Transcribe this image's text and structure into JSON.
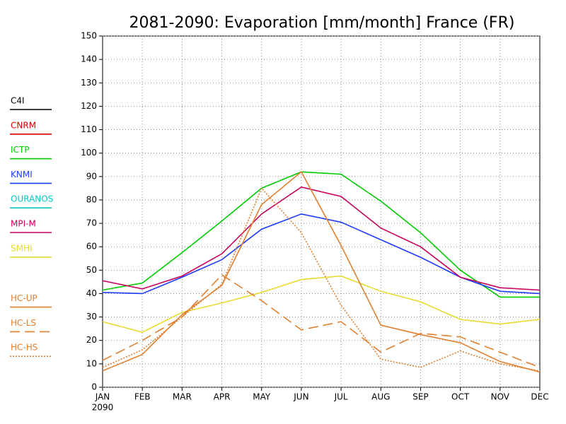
{
  "chart_data": {
    "type": "line",
    "title": "2081-2090: Evaporation [mm/month] France (FR)",
    "categories": [
      "JAN",
      "FEB",
      "MAR",
      "APR",
      "MAY",
      "JUN",
      "JUL",
      "AUG",
      "SEP",
      "OCT",
      "NOV",
      "DEC"
    ],
    "year": "2090",
    "ylim": [
      0,
      150
    ],
    "yticks": [
      0,
      10,
      20,
      30,
      40,
      50,
      60,
      70,
      80,
      90,
      100,
      110,
      120,
      130,
      140,
      150
    ],
    "grid": true,
    "series": [
      {
        "name": "C4I",
        "color": "#000000",
        "dash": "solid",
        "values": [
          null,
          null,
          null,
          null,
          null,
          null,
          null,
          null,
          null,
          null,
          null,
          null
        ]
      },
      {
        "name": "CNRM",
        "color": "#e00000",
        "dash": "solid",
        "values": [
          null,
          null,
          null,
          null,
          null,
          null,
          null,
          null,
          null,
          null,
          null,
          null
        ]
      },
      {
        "name": "ICTP",
        "color": "#00cc00",
        "dash": "solid",
        "values": [
          41.5,
          44.5,
          57.5,
          71,
          85,
          92,
          91,
          79.5,
          66,
          50,
          38.5,
          38.5
        ]
      },
      {
        "name": "KNMI",
        "color": "#1e3cff",
        "dash": "solid",
        "values": [
          40.5,
          40,
          47,
          54.5,
          67.5,
          74,
          70.5,
          63,
          55.5,
          47,
          41,
          40
        ]
      },
      {
        "name": "OURANOS",
        "color": "#00c8c8",
        "dash": "solid",
        "values": [
          null,
          null,
          null,
          null,
          null,
          null,
          null,
          null,
          null,
          null,
          null,
          null
        ]
      },
      {
        "name": "MPI-M",
        "color": "#c8005a",
        "dash": "solid",
        "values": [
          45.5,
          42,
          47.5,
          57,
          74,
          85.5,
          81.5,
          68,
          60,
          47,
          42.5,
          41.5
        ]
      },
      {
        "name": "SMHI",
        "color": "#e6dc32",
        "dash": "solid",
        "values": [
          28,
          23.5,
          32,
          36,
          40.5,
          46,
          47.5,
          41,
          36.5,
          29,
          27,
          29
        ]
      },
      {
        "name": "HC-UP",
        "color": "#e08030",
        "dash": "solid",
        "values": [
          7,
          14,
          31,
          43.5,
          78,
          92,
          60.5,
          26.5,
          22.5,
          19,
          11,
          6.5
        ]
      },
      {
        "name": "HC-LS",
        "color": "#e08030",
        "dash": "dash",
        "values": [
          11.5,
          20,
          30,
          48,
          37,
          24.5,
          28,
          15,
          23,
          21.5,
          15,
          8.5
        ]
      },
      {
        "name": "HC-HS",
        "color": "#e08030",
        "dash": "dot",
        "values": [
          8.5,
          16,
          30,
          44,
          85,
          66,
          35,
          12,
          8.5,
          15.5,
          10,
          7
        ]
      }
    ]
  }
}
